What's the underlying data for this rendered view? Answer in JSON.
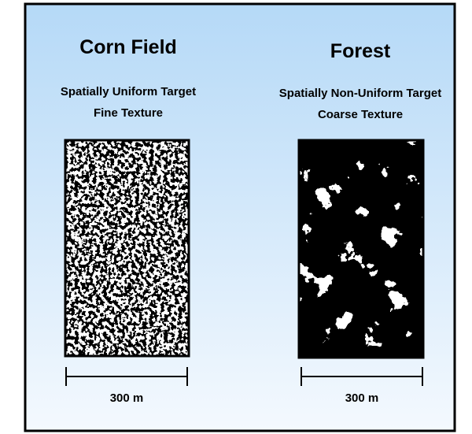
{
  "panels": [
    {
      "title": "Corn Field",
      "subtitle": [
        "Spatially Uniform Target",
        "Fine Texture"
      ],
      "scale_label": "300 m"
    },
    {
      "title": "Forest",
      "subtitle": [
        "Spatially Non-Uniform Target",
        "Coarse Texture"
      ],
      "scale_label": "300 m"
    }
  ]
}
